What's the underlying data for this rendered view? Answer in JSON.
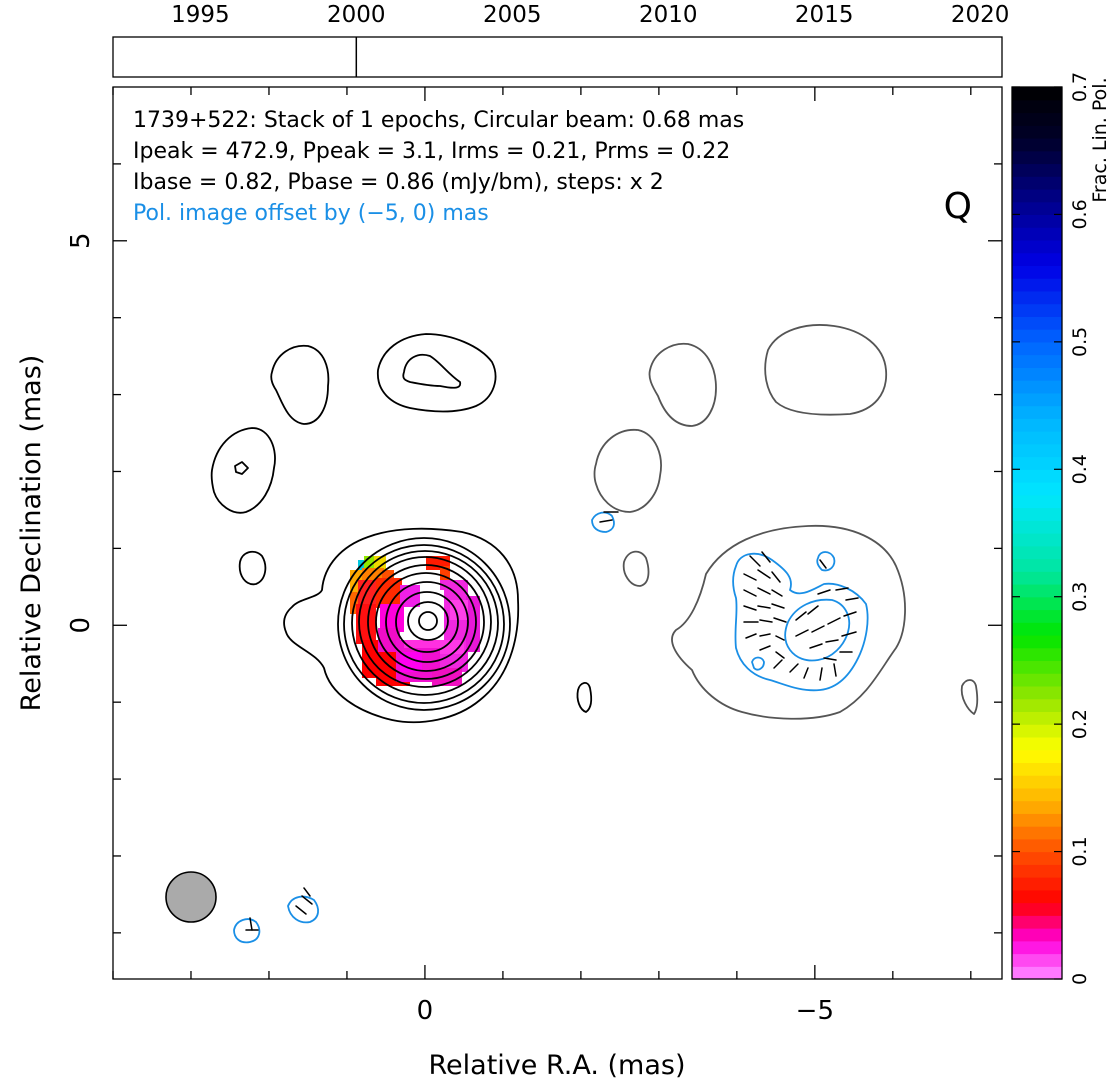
{
  "chart_data": {
    "type": "heatmap",
    "title": "1739+522: Stack of 1 epochs, Circular beam: 0.68 mas",
    "annotations": [
      "1739+522: Stack of 1 epochs, Circular beam: 0.68 mas",
      "Ipeak = 472.9, Ppeak = 3.1, Irms = 0.21, Prms = 0.22",
      "Ibase = 0.82, Pbase = 0.86 (mJy/bm), steps: x 2"
    ],
    "offset_note": "Pol. image offset by (−5, 0) mas",
    "quality_flag": "Q",
    "xlabel": "Relative R.A. (mas)",
    "ylabel": "Relative Declination (mas)",
    "colorbar_label": "Frac. Lin. Pol.",
    "x_range": [
      4.0,
      -7.4
    ],
    "y_range": [
      -4.6,
      7.0
    ],
    "x_tick_labels": [
      {
        "value": 0,
        "label": "0"
      },
      {
        "value": -5,
        "label": "−5"
      }
    ],
    "y_tick_labels": [
      {
        "value": 0,
        "label": "0"
      },
      {
        "value": 5,
        "label": "5"
      }
    ],
    "colorbar_range": [
      0,
      0.7
    ],
    "colorbar_ticks": [
      {
        "value": 0,
        "label": "0"
      },
      {
        "value": 0.1,
        "label": "0.1"
      },
      {
        "value": 0.2,
        "label": "0.2"
      },
      {
        "value": 0.3,
        "label": "0.3"
      },
      {
        "value": 0.4,
        "label": "0.4"
      },
      {
        "value": 0.5,
        "label": "0.5"
      },
      {
        "value": 0.6,
        "label": "0.6"
      },
      {
        "value": 0.7,
        "label": "0.7"
      }
    ],
    "timeline": {
      "range": [
        1992.2,
        2020.7
      ],
      "tick_labels": [
        "1995",
        "2000",
        "2005",
        "2010",
        "2015",
        "2020"
      ],
      "tick_years": [
        1995,
        2000,
        2005,
        2010,
        2015,
        2020
      ],
      "epochs": [
        2000.0
      ]
    },
    "beam_diameter_mas": 0.68,
    "stokes_I_peak_mJy": 472.9,
    "pol_peak_mJy": 3.1,
    "I_rms": 0.21,
    "P_rms": 0.22,
    "I_base": 0.82,
    "P_base": 0.86,
    "contour_step_factor": 2,
    "grid": false
  }
}
